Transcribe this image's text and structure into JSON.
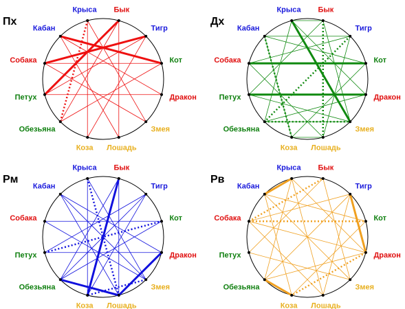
{
  "panels": [
    {
      "title": "Пх",
      "labels": [
        "Крыса",
        "Бык",
        "Тигр",
        "Кот",
        "Дракон",
        "Змея",
        "Лошадь",
        "Коза",
        "Обезьяна",
        "Петух",
        "Собака",
        "Кабан"
      ]
    },
    {
      "title": "Дх",
      "labels": [
        "Крыса",
        "Бык",
        "Тигр",
        "Кот",
        "Дракон",
        "Змея",
        "Лошадь",
        "Коза",
        "Обезьяна",
        "Петух",
        "Собака",
        "Кабан"
      ]
    },
    {
      "title": "Рм",
      "labels": [
        "Крыса",
        "Бык",
        "Тигр",
        "Кот",
        "Дракон",
        "Змея",
        "Лошадь",
        "Коза",
        "Обезьяна",
        "Петух",
        "Собака",
        "Кабан"
      ]
    },
    {
      "title": "Рв",
      "labels": [
        "Крыса",
        "Бык",
        "Тигр",
        "Кот",
        "Дракон",
        "Змея",
        "Лошадь",
        "Коза",
        "Обезьяна",
        "Петух",
        "Собака",
        "Кабан"
      ]
    }
  ]
}
